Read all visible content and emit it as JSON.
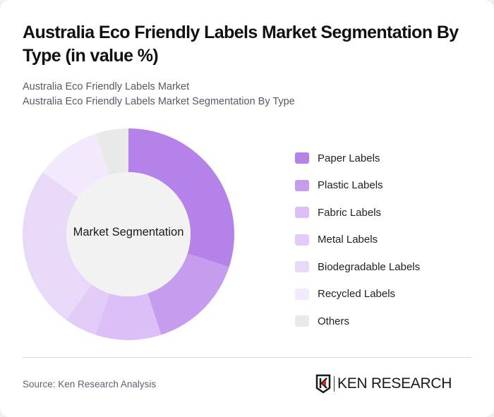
{
  "header": {
    "title": "Australia Eco Friendly Labels Market Segmentation By Type (in value %)",
    "subtitle_line1": "Australia Eco Friendly Labels Market",
    "subtitle_line2": "Australia Eco Friendly Labels Market Segmentation By Type"
  },
  "chart": {
    "center_label": "Market Segmentation"
  },
  "legend": {
    "items": [
      {
        "label": "Paper Labels",
        "color": "#b582ea"
      },
      {
        "label": "Plastic Labels",
        "color": "#c59cee"
      },
      {
        "label": "Fabric Labels",
        "color": "#dbbff6"
      },
      {
        "label": "Metal Labels",
        "color": "#e2ccf7"
      },
      {
        "label": "Biodegradable Labels",
        "color": "#e8d9f9"
      },
      {
        "label": "Recycled Labels",
        "color": "#f2eafc"
      },
      {
        "label": "Others",
        "color": "#e9e9e9"
      }
    ]
  },
  "footer": {
    "source": "Source: Ken Research Analysis",
    "logo_text": "KEN RESEARCH"
  },
  "chart_data": {
    "type": "pie",
    "variant": "donut",
    "title": "Australia Eco Friendly Labels Market Segmentation By Type (in value %)",
    "subtitle": "Australia Eco Friendly Labels Market Segmentation By Type",
    "center_label": "Market Segmentation",
    "categories": [
      "Paper Labels",
      "Plastic Labels",
      "Fabric Labels",
      "Metal Labels",
      "Biodegradable Labels",
      "Recycled Labels",
      "Others"
    ],
    "values": [
      30,
      15,
      10,
      5,
      25,
      10,
      5
    ],
    "colors": [
      "#b582ea",
      "#c59cee",
      "#dbbff6",
      "#e2ccf7",
      "#e8d9f9",
      "#f2eafc",
      "#e9e9e9"
    ],
    "unit": "%",
    "legend_position": "right",
    "source": "Source: Ken Research Analysis"
  }
}
